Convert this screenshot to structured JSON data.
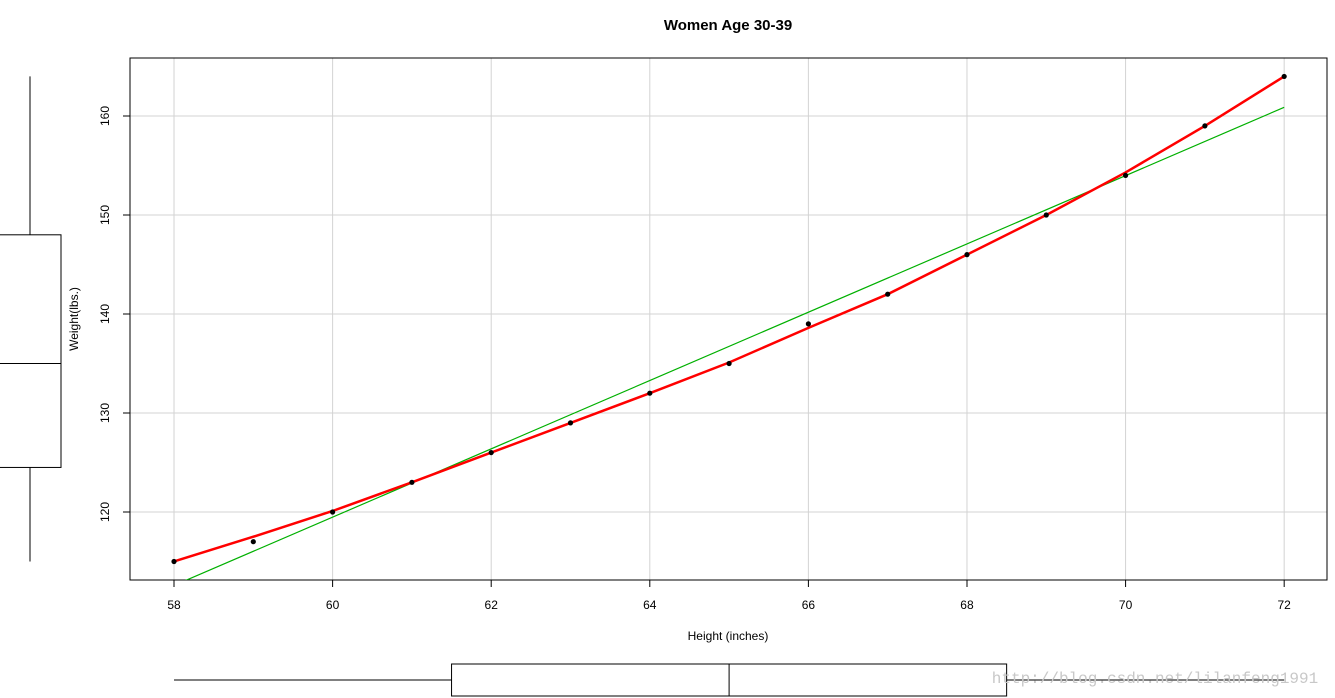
{
  "chart_data": {
    "type": "scatter",
    "title": "Women Age 30-39",
    "xlabel": "Height (inches)",
    "ylabel": "Weight(lbs.)",
    "x": [
      58,
      59,
      60,
      61,
      62,
      63,
      64,
      65,
      66,
      67,
      68,
      69,
      70,
      71,
      72
    ],
    "values": [
      115,
      117,
      120,
      123,
      126,
      129,
      132,
      135,
      139,
      142,
      146,
      150,
      154,
      159,
      164
    ],
    "color": "#000000",
    "smooth": {
      "values": [
        115,
        117.5,
        120.1,
        123,
        126,
        129,
        132,
        135.1,
        138.6,
        142,
        146,
        150,
        154.3,
        159,
        164
      ],
      "color": "#ff0000"
    },
    "regression": {
      "intercept": -87.52,
      "slope": 3.45,
      "color": "#00b000"
    },
    "boxplots": {
      "x": [
        58,
        61.5,
        65,
        68.5,
        72
      ],
      "y": [
        115,
        124.5,
        135,
        148,
        164
      ]
    },
    "xlim": [
      57.445,
      72.54
    ],
    "ylim": [
      113.13,
      165.86
    ],
    "xticks": [
      58,
      60,
      62,
      64,
      66,
      68,
      70,
      72
    ],
    "yticks": [
      120,
      130,
      140,
      150,
      160
    ],
    "grid": true,
    "watermark": "http://blog.csdn.net/lilanfeng1991"
  }
}
